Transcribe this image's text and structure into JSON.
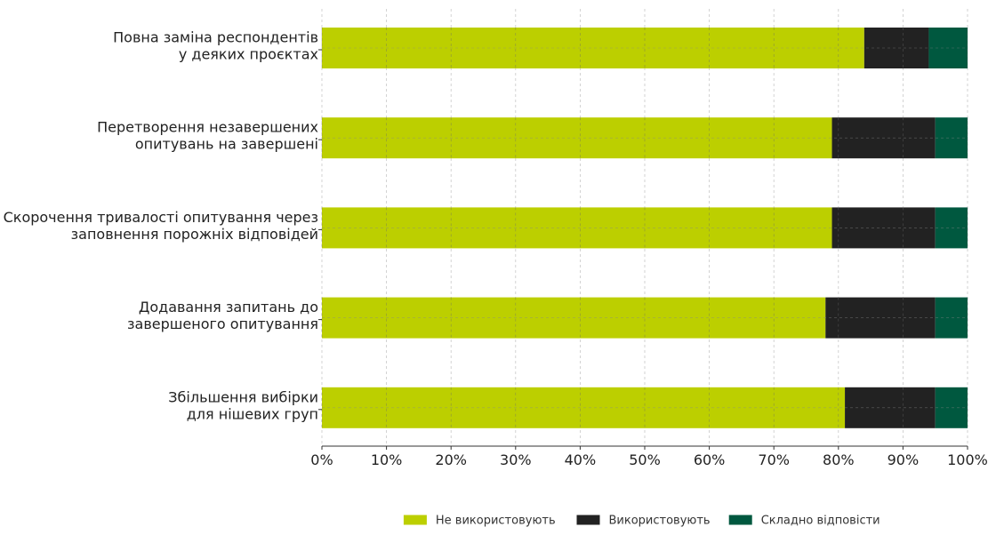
{
  "chart_data": {
    "type": "bar",
    "orientation": "horizontal",
    "stacked": true,
    "categories": [
      [
        "Повна заміна респондентів",
        "у деяких проєктах"
      ],
      [
        "Перетворення незавершених",
        "опитувань на завершені"
      ],
      [
        "Скорочення тривалості опитування через",
        "заповнення порожніх відповідей"
      ],
      [
        "Додавання запитань до",
        "завершеного опитування"
      ],
      [
        "Збільшення вибірки",
        "для нішевих груп"
      ]
    ],
    "series": [
      {
        "name": "Не використовують",
        "color": "#bccf00",
        "values": [
          84,
          79,
          79,
          78,
          81
        ]
      },
      {
        "name": "Використовують",
        "color": "#222222",
        "values": [
          10,
          16,
          16,
          17,
          14
        ]
      },
      {
        "name": "Складно відповісти",
        "color": "#00583f",
        "values": [
          6,
          5,
          5,
          5,
          5
        ]
      }
    ],
    "xlim": [
      0,
      100
    ],
    "xticks": [
      "0%",
      "10%",
      "20%",
      "30%",
      "40%",
      "50%",
      "60%",
      "70%",
      "80%",
      "90%",
      "100%"
    ],
    "grid": true,
    "legend_position": "bottom"
  }
}
